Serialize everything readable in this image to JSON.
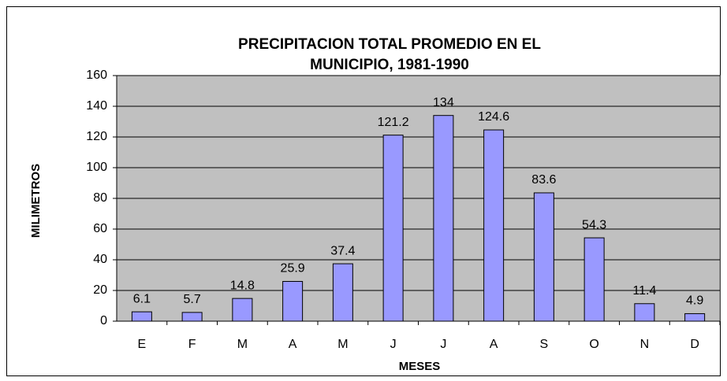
{
  "chart_data": {
    "type": "bar",
    "title": [
      "PRECIPITACION TOTAL PROMEDIO EN EL",
      "MUNICIPIO, 1981-1990"
    ],
    "x_label": "MESES",
    "y_label": "MILIMETROS",
    "categories": [
      "E",
      "F",
      "M",
      "A",
      "M",
      "J",
      "J",
      "A",
      "S",
      "O",
      "N",
      "D"
    ],
    "values": [
      6.1,
      5.7,
      14.8,
      25.9,
      37.4,
      121.2,
      134,
      124.6,
      83.6,
      54.3,
      11.4,
      4.9
    ],
    "color": "#9999ff",
    "ylim": [
      0,
      160
    ],
    "yticks": [
      0,
      20,
      40,
      60,
      80,
      100,
      120,
      140,
      160
    ],
    "grid": true
  }
}
